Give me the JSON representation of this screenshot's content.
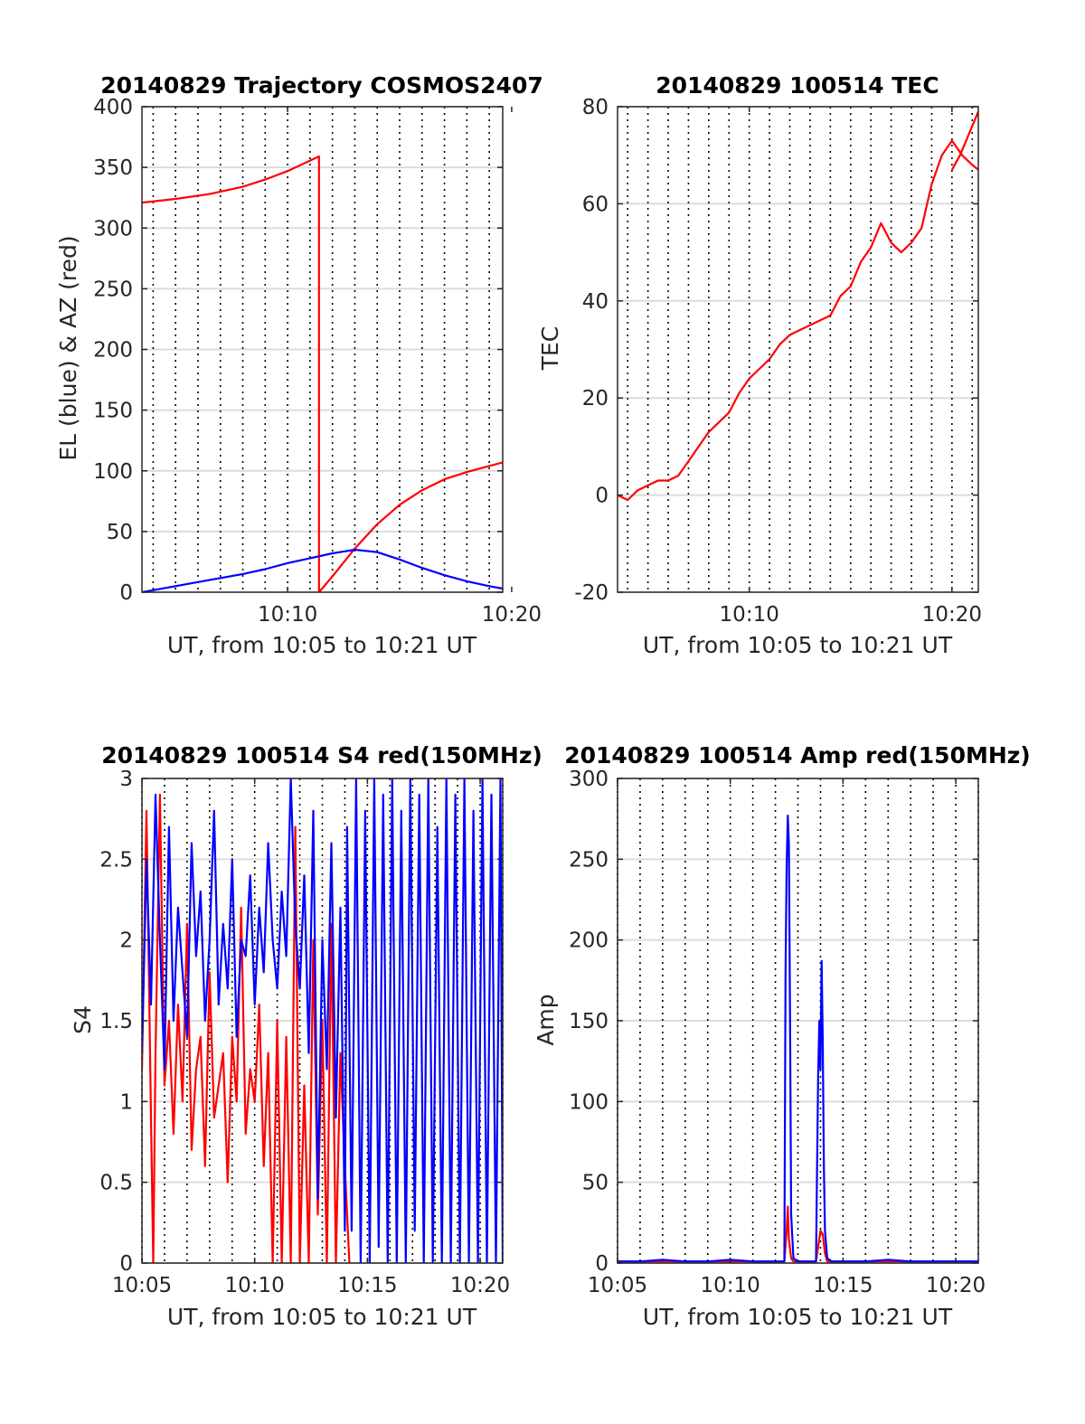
{
  "figure": {
    "background": "#ffffff"
  },
  "colors": {
    "az": "#ff0000",
    "el": "#0000ff",
    "grid": "#dcdcdc",
    "minor": "#000000",
    "axis": "#262626"
  },
  "chart_data": [
    {
      "type": "line",
      "title": "20140829 Trajectory COSMOS2407",
      "xlabel": "UT, from 10:05 to 10:21 UT",
      "ylabel": "EL (blue) & AZ (red)",
      "xlim_min": [
        3.5,
        19.6
      ],
      "ylim": [
        0,
        400
      ],
      "xticks": [
        {
          "v": 10,
          "label": "10:10"
        },
        {
          "v": 20,
          "label": "10:20"
        }
      ],
      "yticks": [
        {
          "v": 0,
          "label": "0"
        },
        {
          "v": 50,
          "label": "50"
        },
        {
          "v": 100,
          "label": "100"
        },
        {
          "v": 150,
          "label": "150"
        },
        {
          "v": 200,
          "label": "200"
        },
        {
          "v": 250,
          "label": "250"
        },
        {
          "v": 300,
          "label": "300"
        },
        {
          "v": 350,
          "label": "350"
        },
        {
          "v": 400,
          "label": "400"
        }
      ],
      "grid": true,
      "minor_x_dotted": true,
      "series": [
        {
          "color": "#ff0000",
          "x": [
            3.5,
            5,
            6.5,
            8,
            9,
            10,
            11.4,
            11.4,
            12,
            13,
            14,
            15,
            16,
            17,
            18,
            19,
            19.6
          ],
          "y": [
            321,
            324,
            328,
            334,
            340,
            347,
            359,
            0,
            13,
            36,
            56,
            72,
            84,
            93,
            99,
            104,
            107
          ]
        },
        {
          "color": "#0000ff",
          "x": [
            3.5,
            5,
            6.5,
            8,
            9,
            10,
            11,
            12,
            13,
            14,
            15,
            16,
            17,
            18,
            19,
            19.6
          ],
          "y": [
            0,
            5,
            10,
            15,
            19,
            24,
            28,
            32,
            35,
            33,
            27,
            20,
            14,
            9,
            5,
            3
          ]
        }
      ]
    },
    {
      "type": "line",
      "title": "20140829 100514 TEC",
      "xlabel": "UT, from 10:05 to 10:21 UT",
      "ylabel": "TEC",
      "xlim_min": [
        3.5,
        21.3
      ],
      "ylim": [
        -20,
        80
      ],
      "xticks": [
        {
          "v": 10,
          "label": "10:10"
        },
        {
          "v": 20,
          "label": "10:20"
        }
      ],
      "yticks": [
        {
          "v": -20,
          "label": "-20"
        },
        {
          "v": 0,
          "label": "0"
        },
        {
          "v": 20,
          "label": "20"
        },
        {
          "v": 40,
          "label": "40"
        },
        {
          "v": 60,
          "label": "60"
        },
        {
          "v": 80,
          "label": "80"
        }
      ],
      "grid": true,
      "minor_x_dotted": true,
      "series": [
        {
          "color": "#ff0000",
          "x": [
            3.5,
            4,
            4.5,
            5,
            5.5,
            6,
            6.5,
            7,
            7.5,
            8,
            8.5,
            9,
            9.5,
            10,
            10.5,
            11,
            11.5,
            12,
            12.5,
            13,
            13.5,
            14,
            14.5,
            15,
            15.5,
            16,
            16.5,
            17,
            17.5,
            18,
            18.5,
            19,
            19.5,
            20,
            20.5,
            21,
            21.3
          ],
          "y": [
            0,
            -1,
            1,
            2,
            3,
            3,
            4,
            7,
            10,
            13,
            15,
            17,
            21,
            24,
            26,
            28,
            31,
            33,
            34,
            35,
            36,
            37,
            41,
            43,
            48,
            51,
            56,
            52,
            50,
            52,
            55,
            64,
            70,
            73,
            70,
            68,
            67
          ]
        },
        {
          "color": "#ff0000",
          "x": [
            20,
            20.4,
            20.8,
            21.3
          ],
          "y": [
            67,
            70,
            74,
            79
          ]
        }
      ]
    },
    {
      "type": "line",
      "title": "20140829 100514 S4 red(150MHz)",
      "xlabel": "UT, from 10:05 to 10:21 UT",
      "ylabel": "S4",
      "xlim_min": [
        5,
        21
      ],
      "ylim": [
        0,
        3
      ],
      "xticks": [
        {
          "v": 5,
          "label": "10:05"
        },
        {
          "v": 10,
          "label": "10:10"
        },
        {
          "v": 15,
          "label": "10:15"
        },
        {
          "v": 20,
          "label": "10:20"
        }
      ],
      "yticks": [
        {
          "v": 0,
          "label": "0"
        },
        {
          "v": 0.5,
          "label": "0.5"
        },
        {
          "v": 1,
          "label": "1"
        },
        {
          "v": 1.5,
          "label": "1.5"
        },
        {
          "v": 2,
          "label": "2"
        },
        {
          "v": 2.5,
          "label": "2.5"
        },
        {
          "v": 3,
          "label": "3"
        }
      ],
      "grid": true,
      "minor_x_dotted": true,
      "series": [
        {
          "color": "#ff0000",
          "x": [
            5,
            5.2,
            5.4,
            5.5,
            5.6,
            5.8,
            6.0,
            6.2,
            6.4,
            6.6,
            6.8,
            7.0,
            7.2,
            7.4,
            7.6,
            7.8,
            8.0,
            8.2,
            8.4,
            8.6,
            8.8,
            9.0,
            9.2,
            9.4,
            9.6,
            9.8,
            10.0,
            10.2,
            10.4,
            10.6,
            10.8,
            11.0,
            11.2,
            11.4,
            11.6,
            11.8,
            12.0,
            12.2,
            12.4,
            12.6,
            12.8,
            13.0,
            13.2,
            13.4,
            13.6,
            13.8,
            14.0,
            14.2
          ],
          "y": [
            1.2,
            2.8,
            0.9,
            0,
            1.3,
            2.9,
            1.1,
            1.5,
            0.8,
            1.6,
            1.0,
            2.1,
            0.7,
            1.2,
            1.4,
            0.6,
            1.8,
            0.9,
            1.1,
            1.3,
            0.5,
            1.4,
            1.0,
            2.2,
            0.8,
            1.2,
            1.0,
            1.6,
            0.6,
            1.3,
            0,
            1.5,
            0,
            1.4,
            0,
            2.7,
            0,
            1.1,
            0,
            2.0,
            0.3,
            1.5,
            0,
            2.1,
            0,
            1.3,
            0.6,
            0
          ]
        },
        {
          "color": "#0000ff",
          "x": [
            5,
            5.2,
            5.4,
            5.6,
            5.8,
            6.0,
            6.2,
            6.4,
            6.6,
            6.8,
            7.0,
            7.2,
            7.4,
            7.6,
            7.8,
            8.0,
            8.2,
            8.4,
            8.6,
            8.8,
            9.0,
            9.2,
            9.4,
            9.6,
            9.8,
            10.0,
            10.2,
            10.4,
            10.6,
            10.8,
            11.0,
            11.2,
            11.4,
            11.6,
            11.8,
            12.0,
            12.2,
            12.4,
            12.6,
            12.8,
            13.0,
            13.2,
            13.4,
            13.6,
            13.8,
            14.0,
            14.1,
            14.3,
            14.5,
            14.7,
            14.9,
            15.1,
            15.3,
            15.5,
            15.7,
            15.9,
            16.1,
            16.3,
            16.5,
            16.7,
            16.9,
            17.1,
            17.3,
            17.5,
            17.7,
            17.9,
            18.1,
            18.3,
            18.5,
            18.7,
            18.9,
            19.1,
            19.3,
            19.5,
            19.7,
            19.9,
            20.1,
            20.3,
            20.5,
            20.7,
            20.9,
            21.0
          ],
          "y": [
            1.3,
            2.5,
            1.6,
            2.9,
            2.0,
            1.2,
            2.7,
            1.5,
            2.2,
            1.8,
            1.4,
            2.6,
            1.9,
            2.3,
            1.5,
            2.0,
            2.8,
            1.6,
            2.1,
            1.7,
            2.5,
            1.4,
            2.0,
            1.9,
            2.4,
            1.6,
            2.2,
            1.8,
            2.6,
            2.0,
            1.7,
            2.3,
            1.9,
            3.0,
            2.1,
            1.7,
            2.4,
            1.3,
            2.8,
            0.4,
            2.0,
            1.2,
            2.6,
            0.9,
            2.2,
            0.2,
            2.7,
            0.2,
            3.0,
            0,
            2.8,
            0,
            3.0,
            0.1,
            2.9,
            0,
            3.0,
            0,
            2.8,
            0,
            3.0,
            0.2,
            2.9,
            0,
            3.0,
            0,
            2.7,
            0,
            3.0,
            0,
            2.9,
            0,
            3.0,
            0,
            2.8,
            0,
            3.0,
            0,
            2.9,
            0,
            3.0,
            0
          ]
        }
      ]
    },
    {
      "type": "line",
      "title": "20140829 100514 Amp red(150MHz)",
      "xlabel": "UT, from 10:05 to 10:21 UT",
      "ylabel": "Amp",
      "xlim_min": [
        5,
        21
      ],
      "ylim": [
        0,
        300
      ],
      "xticks": [
        {
          "v": 5,
          "label": "10:05"
        },
        {
          "v": 10,
          "label": "10:10"
        },
        {
          "v": 15,
          "label": "10:15"
        },
        {
          "v": 20,
          "label": "10:20"
        }
      ],
      "yticks": [
        {
          "v": 0,
          "label": "0"
        },
        {
          "v": 50,
          "label": "50"
        },
        {
          "v": 100,
          "label": "100"
        },
        {
          "v": 150,
          "label": "150"
        },
        {
          "v": 200,
          "label": "200"
        },
        {
          "v": 250,
          "label": "250"
        },
        {
          "v": 300,
          "label": "300"
        }
      ],
      "grid": true,
      "minor_x_dotted": true,
      "series": [
        {
          "color": "#ff0000",
          "x": [
            5,
            12.4,
            12.5,
            12.55,
            12.6,
            12.7,
            12.8,
            13.8,
            13.9,
            14.0,
            14.1,
            14.2,
            14.3,
            21
          ],
          "y": [
            1,
            1,
            20,
            35,
            15,
            3,
            1,
            1,
            10,
            20,
            18,
            6,
            1,
            1
          ]
        },
        {
          "color": "#0000ff",
          "x": [
            5,
            6,
            7,
            8,
            9,
            10,
            11,
            12,
            12.4,
            12.45,
            12.5,
            12.55,
            12.6,
            12.65,
            12.7,
            12.8,
            13.0,
            13.8,
            13.85,
            13.9,
            13.95,
            14.0,
            14.05,
            14.1,
            14.15,
            14.2,
            14.3,
            14.5,
            15,
            16,
            17,
            18,
            19,
            20,
            21
          ],
          "y": [
            1,
            1,
            2,
            1,
            1,
            2,
            1,
            1,
            1,
            180,
            245,
            277,
            260,
            150,
            30,
            3,
            1,
            1,
            60,
            117,
            150,
            120,
            187,
            140,
            60,
            20,
            3,
            1,
            1,
            1,
            2,
            1,
            1,
            1,
            1
          ]
        }
      ]
    }
  ]
}
